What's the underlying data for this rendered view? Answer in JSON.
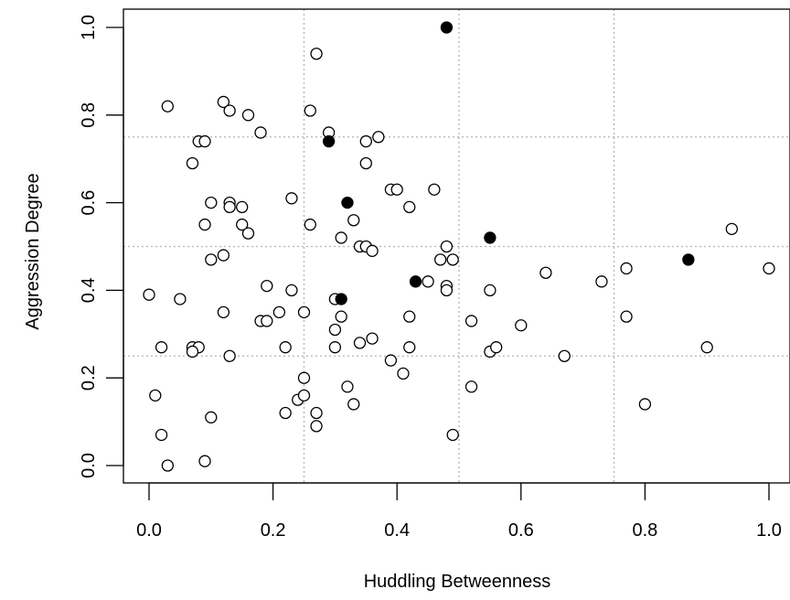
{
  "chart_data": {
    "type": "scatter",
    "title": "",
    "xlabel": "Huddling Betweenness",
    "ylabel": "Aggression Degree",
    "xlim": [
      0,
      1
    ],
    "ylim": [
      0,
      1
    ],
    "x_ticks": [
      "0.0",
      "0.2",
      "0.4",
      "0.6",
      "0.8",
      "1.0"
    ],
    "y_ticks": [
      "0.0",
      "0.2",
      "0.4",
      "0.6",
      "0.8",
      "1.0"
    ],
    "grid": {
      "x": [
        0.25,
        0.5,
        0.75
      ],
      "y": [
        0.25,
        0.5,
        0.75
      ],
      "style": "dotted",
      "color": "#b3b3b3"
    },
    "series": [
      {
        "marker": "open-circle",
        "color": "#000000",
        "points": [
          [
            0.27,
            0.94
          ],
          [
            0.12,
            0.83
          ],
          [
            0.03,
            0.82
          ],
          [
            0.13,
            0.81
          ],
          [
            0.26,
            0.81
          ],
          [
            0.16,
            0.8
          ],
          [
            0.29,
            0.76
          ],
          [
            0.18,
            0.76
          ],
          [
            0.37,
            0.75
          ],
          [
            0.08,
            0.74
          ],
          [
            0.09,
            0.74
          ],
          [
            0.35,
            0.74
          ],
          [
            0.07,
            0.69
          ],
          [
            0.35,
            0.69
          ],
          [
            0.39,
            0.63
          ],
          [
            0.4,
            0.63
          ],
          [
            0.46,
            0.63
          ],
          [
            0.23,
            0.61
          ],
          [
            0.1,
            0.6
          ],
          [
            0.13,
            0.6
          ],
          [
            0.13,
            0.59
          ],
          [
            0.15,
            0.59
          ],
          [
            0.42,
            0.59
          ],
          [
            0.33,
            0.56
          ],
          [
            0.26,
            0.55
          ],
          [
            0.09,
            0.55
          ],
          [
            0.15,
            0.55
          ],
          [
            0.16,
            0.53
          ],
          [
            0.31,
            0.52
          ],
          [
            0.34,
            0.5
          ],
          [
            0.35,
            0.5
          ],
          [
            0.36,
            0.49
          ],
          [
            0.48,
            0.5
          ],
          [
            0.12,
            0.48
          ],
          [
            0.1,
            0.47
          ],
          [
            0.47,
            0.47
          ],
          [
            0.49,
            0.47
          ],
          [
            0.94,
            0.54
          ],
          [
            1.0,
            0.45
          ],
          [
            0.77,
            0.45
          ],
          [
            0.64,
            0.44
          ],
          [
            0.73,
            0.42
          ],
          [
            0.45,
            0.42
          ],
          [
            0.48,
            0.41
          ],
          [
            0.48,
            0.4
          ],
          [
            0.55,
            0.4
          ],
          [
            0.19,
            0.41
          ],
          [
            0.23,
            0.4
          ],
          [
            0.0,
            0.39
          ],
          [
            0.05,
            0.38
          ],
          [
            0.3,
            0.38
          ],
          [
            0.12,
            0.35
          ],
          [
            0.21,
            0.35
          ],
          [
            0.25,
            0.35
          ],
          [
            0.31,
            0.34
          ],
          [
            0.42,
            0.34
          ],
          [
            0.77,
            0.34
          ],
          [
            0.18,
            0.33
          ],
          [
            0.19,
            0.33
          ],
          [
            0.52,
            0.33
          ],
          [
            0.6,
            0.32
          ],
          [
            0.3,
            0.31
          ],
          [
            0.36,
            0.29
          ],
          [
            0.34,
            0.28
          ],
          [
            0.02,
            0.27
          ],
          [
            0.07,
            0.27
          ],
          [
            0.08,
            0.27
          ],
          [
            0.22,
            0.27
          ],
          [
            0.3,
            0.27
          ],
          [
            0.42,
            0.27
          ],
          [
            0.55,
            0.26
          ],
          [
            0.56,
            0.27
          ],
          [
            0.9,
            0.27
          ],
          [
            0.07,
            0.26
          ],
          [
            0.13,
            0.25
          ],
          [
            0.67,
            0.25
          ],
          [
            0.39,
            0.24
          ],
          [
            0.41,
            0.21
          ],
          [
            0.25,
            0.2
          ],
          [
            0.32,
            0.18
          ],
          [
            0.52,
            0.18
          ],
          [
            0.24,
            0.15
          ],
          [
            0.25,
            0.16
          ],
          [
            0.01,
            0.16
          ],
          [
            0.33,
            0.14
          ],
          [
            0.8,
            0.14
          ],
          [
            0.22,
            0.12
          ],
          [
            0.27,
            0.12
          ],
          [
            0.1,
            0.11
          ],
          [
            0.27,
            0.09
          ],
          [
            0.02,
            0.07
          ],
          [
            0.49,
            0.07
          ],
          [
            0.09,
            0.01
          ],
          [
            0.03,
            0.0
          ]
        ]
      },
      {
        "marker": "filled-circle",
        "color": "#000000",
        "points": [
          [
            0.48,
            1.0
          ],
          [
            0.29,
            0.74
          ],
          [
            0.32,
            0.6
          ],
          [
            0.55,
            0.52
          ],
          [
            0.87,
            0.47
          ],
          [
            0.43,
            0.42
          ],
          [
            0.31,
            0.38
          ]
        ]
      }
    ]
  }
}
